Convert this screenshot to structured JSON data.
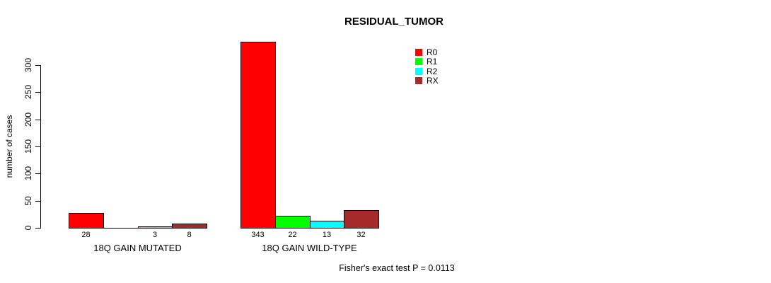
{
  "title": "RESIDUAL_TUMOR",
  "y_axis": {
    "label": "number of cases",
    "ticks": [
      0,
      50,
      100,
      150,
      200,
      250,
      300
    ]
  },
  "footer": "Fisher's exact test P = 0.0113",
  "legend": {
    "items": [
      {
        "label": "R0",
        "color": "#FF0000"
      },
      {
        "label": "R1",
        "color": "#00FF00"
      },
      {
        "label": "R2",
        "color": "#00FFFF"
      },
      {
        "label": "RX",
        "color": "#A52A2A"
      }
    ]
  },
  "chart_data": {
    "type": "bar",
    "title": "RESIDUAL_TUMOR",
    "xlabel": "",
    "ylabel": "number of cases",
    "ylim": [
      0,
      343
    ],
    "yticks": [
      0,
      50,
      100,
      150,
      200,
      250,
      300
    ],
    "grid": false,
    "legend_position": "top-right",
    "categories": [
      "18Q GAIN MUTATED",
      "18Q GAIN WILD-TYPE"
    ],
    "series": [
      {
        "name": "R0",
        "color": "#FF0000",
        "values": [
          28,
          343
        ]
      },
      {
        "name": "R1",
        "color": "#00FF00",
        "values": [
          0,
          22
        ]
      },
      {
        "name": "R2",
        "color": "#00FFFF",
        "values": [
          3,
          13
        ]
      },
      {
        "name": "RX",
        "color": "#A52A2A",
        "values": [
          8,
          32
        ]
      }
    ],
    "bar_value_labels": [
      [
        "28",
        "",
        "3",
        "8"
      ],
      [
        "343",
        "22",
        "13",
        "32"
      ]
    ],
    "annotation": "Fisher's exact test P = 0.0113"
  }
}
